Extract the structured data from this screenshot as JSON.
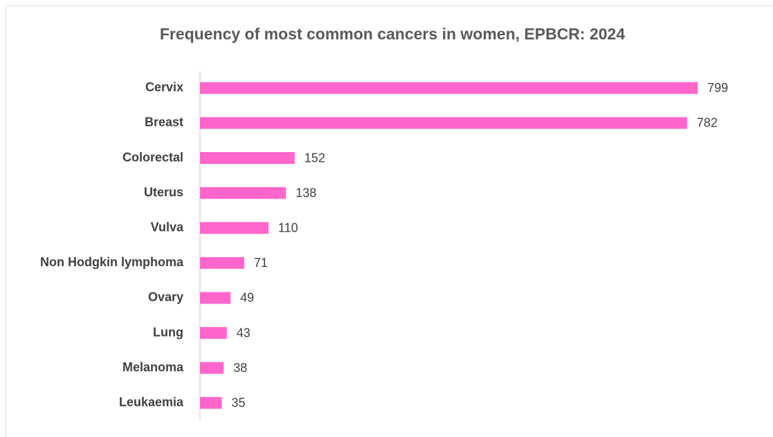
{
  "chart_data": {
    "type": "bar",
    "orientation": "horizontal",
    "title": "Frequency of most common cancers in women, EPBCR: 2024",
    "categories": [
      "Cervix",
      "Breast",
      "Colorectal",
      "Uterus",
      "Vulva",
      "Non Hodgkin lymphoma",
      "Ovary",
      "Lung",
      "Melanoma",
      "Leukaemia"
    ],
    "values": [
      799,
      782,
      152,
      138,
      110,
      71,
      49,
      43,
      38,
      35
    ],
    "color": "#ff66cc"
  }
}
